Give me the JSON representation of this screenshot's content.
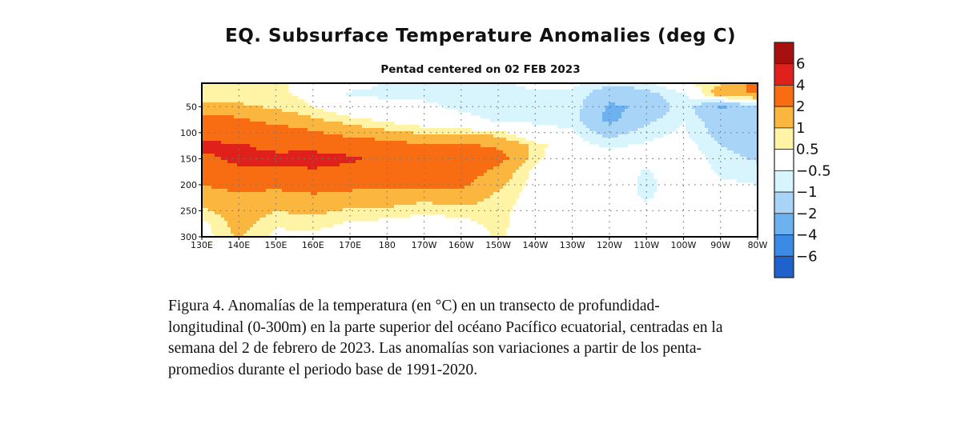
{
  "chart_data": {
    "type": "heatmap",
    "title": "EQ. Subsurface Temperature Anomalies (deg C)",
    "subtitle": "Pentad centered on 02 FEB 2023",
    "xlabel": "",
    "ylabel": "",
    "x_tick_labels": [
      "130E",
      "140E",
      "150E",
      "160E",
      "170E",
      "180",
      "170W",
      "160W",
      "150W",
      "140W",
      "130W",
      "120W",
      "110W",
      "100W",
      "90W",
      "80W"
    ],
    "y_tick_labels": [
      "50",
      "100",
      "150",
      "200",
      "250",
      "300"
    ],
    "y_ticks": [
      50,
      100,
      150,
      200,
      250,
      300
    ],
    "xlim_deg_east": [
      130,
      280
    ],
    "ylim_depth_m": [
      5,
      300
    ],
    "y_inverted": true,
    "grid": "dotted",
    "longitudes_deg_east": [
      130,
      140,
      150,
      160,
      170,
      180,
      190,
      200,
      210,
      220,
      230,
      240,
      250,
      260,
      270,
      280
    ],
    "depths_m": [
      0,
      25,
      50,
      75,
      100,
      125,
      150,
      175,
      200,
      225,
      250,
      275,
      300
    ],
    "values_by_longitude": [
      [
        0.7,
        0.7,
        1.2,
        2.5,
        3.0,
        4.5,
        3.5,
        3.0,
        2.0,
        1.5,
        0.8,
        0.3,
        0.2
      ],
      [
        0.7,
        0.7,
        1.1,
        2.2,
        3.0,
        4.2,
        4.5,
        3.5,
        2.5,
        1.6,
        1.5,
        1.3,
        1.1
      ],
      [
        0.6,
        0.6,
        0.9,
        1.5,
        2.8,
        3.5,
        4.5,
        3.5,
        2.3,
        1.5,
        1.0,
        0.6,
        0.3
      ],
      [
        0.3,
        0.3,
        0.5,
        1.1,
        2.2,
        3.5,
        4.6,
        3.8,
        2.5,
        1.8,
        1.2,
        0.7,
        0.3
      ],
      [
        0.0,
        -0.6,
        -0.2,
        0.7,
        1.5,
        3.0,
        4.3,
        3.5,
        2.4,
        1.5,
        0.9,
        0.4,
        0.2
      ],
      [
        -0.6,
        -0.6,
        -0.3,
        0.3,
        1.2,
        2.5,
        3.5,
        3.0,
        2.2,
        1.5,
        0.8,
        0.3,
        0.1
      ],
      [
        -0.6,
        -0.6,
        -0.4,
        0.0,
        0.9,
        2.2,
        3.0,
        3.0,
        2.2,
        1.2,
        0.6,
        0.2,
        0.0
      ],
      [
        -0.6,
        -0.6,
        -0.6,
        -0.3,
        0.8,
        2.2,
        2.8,
        2.8,
        2.2,
        1.5,
        0.7,
        0.3,
        0.0
      ],
      [
        -0.6,
        -0.6,
        -0.7,
        -0.6,
        0.7,
        1.8,
        2.5,
        1.6,
        1.2,
        0.8,
        0.7,
        0.7,
        0.6
      ],
      [
        -0.3,
        -0.6,
        -0.7,
        -0.6,
        -0.3,
        0.8,
        0.6,
        0.3,
        0.2,
        0.2,
        0.1,
        0.0,
        0.0
      ],
      [
        -0.3,
        -0.6,
        -0.6,
        -0.7,
        -0.4,
        -0.2,
        0.0,
        0.0,
        0.0,
        0.0,
        0.0,
        0.0,
        0.0
      ],
      [
        -0.6,
        -1.5,
        -2.2,
        -2.3,
        -1.3,
        -0.6,
        -0.2,
        0.0,
        0.0,
        0.0,
        0.0,
        0.0,
        0.0
      ],
      [
        -0.6,
        -1.2,
        -1.8,
        -1.2,
        -0.7,
        -0.4,
        -0.2,
        -0.6,
        -0.7,
        -0.6,
        -0.2,
        0.0,
        0.0
      ],
      [
        0.6,
        -0.6,
        -0.6,
        -0.5,
        -0.4,
        -0.2,
        0.0,
        0.0,
        0.0,
        0.0,
        0.0,
        0.0,
        0.0
      ],
      [
        0.8,
        1.5,
        -2.2,
        -1.5,
        -1.3,
        -1.0,
        -0.8,
        -0.6,
        -0.4,
        -0.2,
        0.0,
        0.0,
        0.0
      ],
      [
        2.5,
        2.2,
        -1.3,
        -1.3,
        -1.3,
        -1.2,
        -1.1,
        -0.7,
        -0.5,
        -0.3,
        0.0,
        0.0,
        0.0
      ]
    ],
    "colorbar": {
      "labels": [
        "6",
        "4",
        "2",
        "1",
        "0.5",
        "−0.5",
        "−1",
        "−2",
        "−4",
        "−6"
      ],
      "levels": [
        6,
        4,
        2,
        1,
        0.5,
        -0.5,
        -1,
        -2,
        -4,
        -6
      ],
      "colors": [
        "#a8100f",
        "#e0201a",
        "#f86c12",
        "#fbb640",
        "#fff4a6",
        "#ffffff",
        "#d8f5fe",
        "#a8d5f7",
        "#6cb2f0",
        "#3b8ae6",
        "#2062cc"
      ]
    }
  },
  "caption": {
    "lines": [
      "Figura 4. Anomalías de la temperatura (en °C) en un transecto de profundidad-",
      "longitudinal (0-300m) en la parte superior del océano Pacífico ecuatorial, centradas en la",
      "semana del 2 de febrero de 2023. Las anomalías son variaciones a partir de los penta-",
      "promedios durante el periodo base de 1991-2020."
    ]
  }
}
